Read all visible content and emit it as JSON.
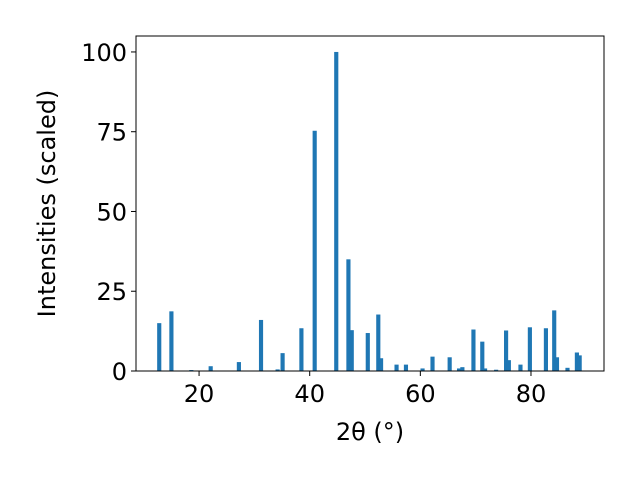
{
  "chart_data": {
    "type": "bar",
    "xlabel": "2θ (°)",
    "ylabel": "Intensities (scaled)",
    "xlim": [
      8.6,
      93.2
    ],
    "ylim": [
      0,
      105
    ],
    "x_ticks": [
      20,
      40,
      60,
      80
    ],
    "y_ticks": [
      0,
      25,
      50,
      75,
      100
    ],
    "grid": false,
    "bar_color": "#1f77b4",
    "bar_width": 0.75,
    "points": [
      {
        "x": 12.8,
        "y": 15.0
      },
      {
        "x": 15.0,
        "y": 18.7
      },
      {
        "x": 18.6,
        "y": 0.3
      },
      {
        "x": 22.1,
        "y": 1.5
      },
      {
        "x": 27.2,
        "y": 2.8
      },
      {
        "x": 31.2,
        "y": 16.0
      },
      {
        "x": 34.2,
        "y": 0.5
      },
      {
        "x": 35.1,
        "y": 5.6
      },
      {
        "x": 38.5,
        "y": 13.4
      },
      {
        "x": 40.9,
        "y": 75.3
      },
      {
        "x": 44.8,
        "y": 100.0
      },
      {
        "x": 47.0,
        "y": 35.0
      },
      {
        "x": 47.6,
        "y": 12.8
      },
      {
        "x": 50.5,
        "y": 11.9
      },
      {
        "x": 52.4,
        "y": 17.7
      },
      {
        "x": 52.9,
        "y": 4.0
      },
      {
        "x": 55.7,
        "y": 2.0
      },
      {
        "x": 57.4,
        "y": 2.0
      },
      {
        "x": 60.4,
        "y": 0.8
      },
      {
        "x": 62.2,
        "y": 4.5
      },
      {
        "x": 65.3,
        "y": 4.3
      },
      {
        "x": 67.0,
        "y": 0.8
      },
      {
        "x": 67.6,
        "y": 1.2
      },
      {
        "x": 69.6,
        "y": 13.0
      },
      {
        "x": 71.2,
        "y": 9.2
      },
      {
        "x": 71.7,
        "y": 0.8
      },
      {
        "x": 73.7,
        "y": 0.4
      },
      {
        "x": 75.5,
        "y": 12.7
      },
      {
        "x": 76.0,
        "y": 3.4
      },
      {
        "x": 78.1,
        "y": 2.0
      },
      {
        "x": 79.8,
        "y": 13.7
      },
      {
        "x": 82.7,
        "y": 13.4
      },
      {
        "x": 84.2,
        "y": 19.0
      },
      {
        "x": 84.7,
        "y": 4.3
      },
      {
        "x": 86.6,
        "y": 1.0
      },
      {
        "x": 88.3,
        "y": 5.8
      },
      {
        "x": 88.8,
        "y": 4.9
      }
    ]
  }
}
